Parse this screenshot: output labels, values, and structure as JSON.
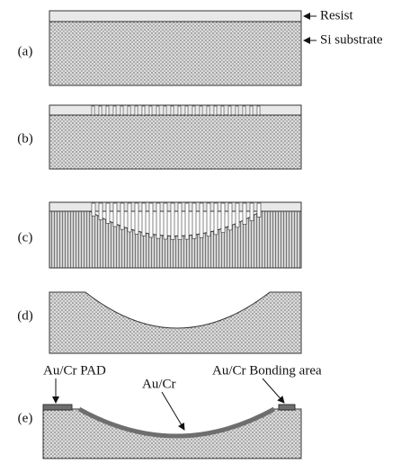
{
  "panels": [
    {
      "label": "(a)"
    },
    {
      "label": "(b)"
    },
    {
      "label": "(c)"
    },
    {
      "label": "(d)"
    },
    {
      "label": "(e)"
    }
  ],
  "annotations": {
    "resist": "Resist",
    "si_substrate": "Si substrate",
    "pad": "Au/Cr PAD",
    "bonding_area": "Au/Cr Bonding area",
    "layer": "Au/Cr"
  }
}
